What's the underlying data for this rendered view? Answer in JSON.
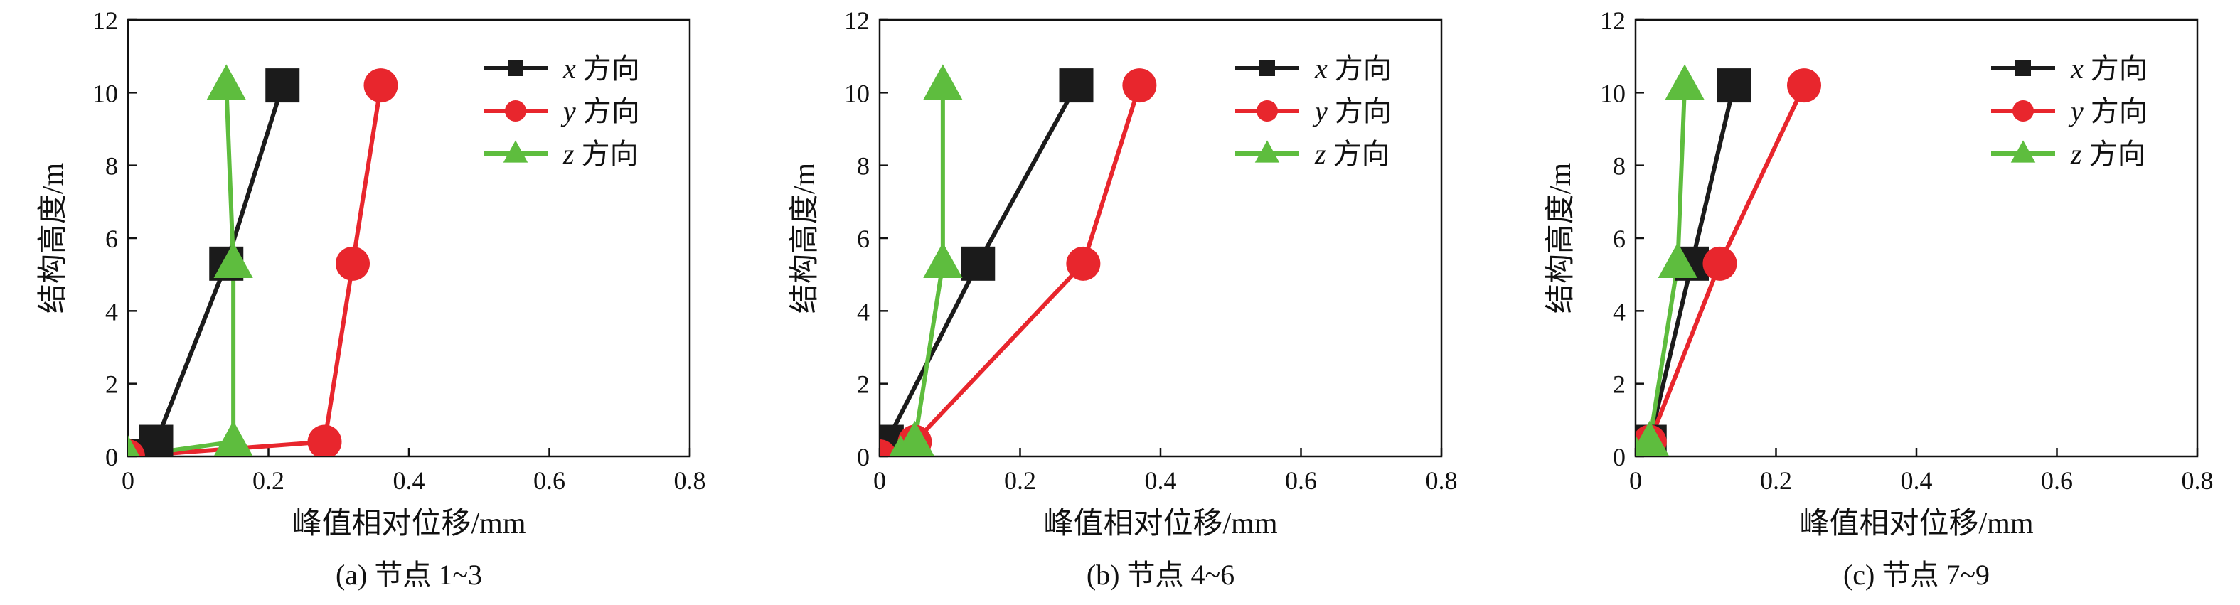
{
  "colors": {
    "x_dir": "#1b1b1b",
    "y_dir": "#e8262d",
    "z_dir": "#5ebd3e",
    "axis": "#111111"
  },
  "chart_data": [
    {
      "type": "line",
      "caption": "(a) 节点 1~3",
      "xlabel": "峰值相对位移/mm",
      "ylabel": "结构高度/m",
      "xlim": [
        0,
        0.8
      ],
      "ylim": [
        0,
        12
      ],
      "xticks": [
        "0",
        "0.2",
        "0.4",
        "0.6",
        "0.8"
      ],
      "yticks": [
        "0",
        "2",
        "4",
        "6",
        "8",
        "10",
        "12"
      ],
      "legend_position": "top-right",
      "series": [
        {
          "var": "x",
          "name": "方向",
          "marker": "square",
          "color": "#1b1b1b",
          "x": [
            0.0,
            0.04,
            0.14,
            0.22
          ],
          "y": [
            0.0,
            0.4,
            5.3,
            10.2
          ]
        },
        {
          "var": "y",
          "name": "方向",
          "marker": "circle",
          "color": "#e8262d",
          "x": [
            0.0,
            0.28,
            0.32,
            0.36
          ],
          "y": [
            0.0,
            0.4,
            5.3,
            10.2
          ]
        },
        {
          "var": "z",
          "name": "方向",
          "marker": "triangle",
          "color": "#5ebd3e",
          "x": [
            0.0,
            0.15,
            0.15,
            0.14
          ],
          "y": [
            0.0,
            0.4,
            5.3,
            10.2
          ]
        }
      ]
    },
    {
      "type": "line",
      "caption": "(b) 节点 4~6",
      "xlabel": "峰值相对位移/mm",
      "ylabel": "结构高度/m",
      "xlim": [
        0,
        0.8
      ],
      "ylim": [
        0,
        12
      ],
      "xticks": [
        "0",
        "0.2",
        "0.4",
        "0.6",
        "0.8"
      ],
      "yticks": [
        "0",
        "2",
        "4",
        "6",
        "8",
        "10",
        "12"
      ],
      "legend_position": "top-right",
      "series": [
        {
          "var": "x",
          "name": "方向",
          "marker": "square",
          "color": "#1b1b1b",
          "x": [
            0.0,
            0.01,
            0.14,
            0.28
          ],
          "y": [
            0.0,
            0.4,
            5.3,
            10.2
          ]
        },
        {
          "var": "y",
          "name": "方向",
          "marker": "circle",
          "color": "#e8262d",
          "x": [
            0.0,
            0.05,
            0.29,
            0.37
          ],
          "y": [
            0.0,
            0.4,
            5.3,
            10.2
          ]
        },
        {
          "var": "z",
          "name": "方向",
          "marker": "triangle",
          "color": "#5ebd3e",
          "x": [
            0.03,
            0.05,
            0.09,
            0.09
          ],
          "y": [
            0.0,
            0.4,
            5.3,
            10.2
          ]
        }
      ]
    },
    {
      "type": "line",
      "caption": "(c) 节点 7~9",
      "xlabel": "峰值相对位移/mm",
      "ylabel": "结构高度/m",
      "xlim": [
        0,
        0.8
      ],
      "ylim": [
        0,
        12
      ],
      "xticks": [
        "0",
        "0.2",
        "0.4",
        "0.6",
        "0.8"
      ],
      "yticks": [
        "0",
        "2",
        "4",
        "6",
        "8",
        "10",
        "12"
      ],
      "legend_position": "top-right",
      "series": [
        {
          "var": "x",
          "name": "方向",
          "marker": "square",
          "color": "#1b1b1b",
          "x": [
            0.0,
            0.02,
            0.08,
            0.14
          ],
          "y": [
            0.0,
            0.4,
            5.3,
            10.2
          ]
        },
        {
          "var": "y",
          "name": "方向",
          "marker": "circle",
          "color": "#e8262d",
          "x": [
            0.0,
            0.02,
            0.12,
            0.24
          ],
          "y": [
            0.0,
            0.4,
            5.3,
            10.2
          ]
        },
        {
          "var": "z",
          "name": "方向",
          "marker": "triangle",
          "color": "#5ebd3e",
          "x": [
            0.0,
            0.02,
            0.06,
            0.07
          ],
          "y": [
            0.0,
            0.4,
            5.3,
            10.2
          ]
        }
      ]
    }
  ]
}
